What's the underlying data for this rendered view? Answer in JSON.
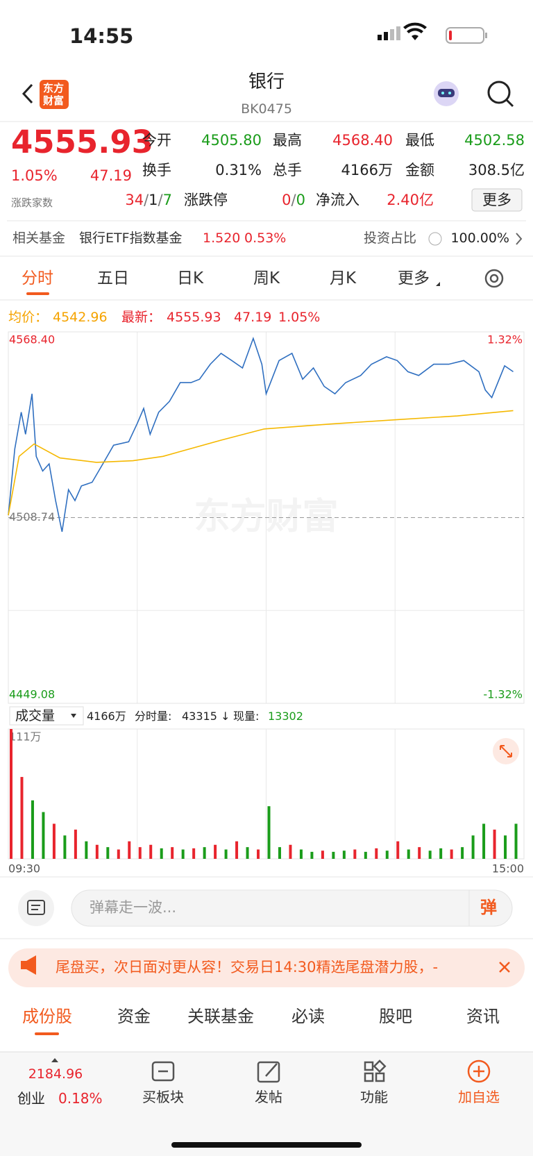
{
  "status_bar": {
    "time": "14:55"
  },
  "header": {
    "logo_top": "东方",
    "logo_bottom": "财富",
    "title": "银行",
    "code": "BK0475"
  },
  "quote": {
    "price": "4555.93",
    "change_pct": "1.05%",
    "change": "47.19",
    "open_label": "今开",
    "open": "4505.80",
    "high_label": "最高",
    "high": "4568.40",
    "low_label": "最低",
    "low": "4502.58",
    "turnover_label": "换手",
    "turnover": "0.31%",
    "volume_label": "总手",
    "volume": "4166万",
    "amount_label": "金额",
    "amount": "308.5亿",
    "breadth_label": "涨跌家数",
    "breadth_up": "34",
    "breadth_flat": "1",
    "breadth_down": "7",
    "sep": "/",
    "limit_label": "涨跌停",
    "limit_up": "0",
    "limit_down": "0",
    "inflow_label": "净流入",
    "inflow": "2.40亿",
    "more": "更多"
  },
  "fund": {
    "label": "相关基金",
    "name": "银行ETF指数基金",
    "price": "1.520",
    "change": "0.53%",
    "weight_label": "投资占比",
    "weight": "100.00%"
  },
  "tabs": [
    "分时",
    "五日",
    "日K",
    "周K",
    "月K",
    "更多"
  ],
  "chart_info": {
    "avg_label": "均价：",
    "avg": "4542.96",
    "last_label": "最新：",
    "last": "4555.93",
    "change": "47.19",
    "change_pct": "1.05%"
  },
  "chart_data": [
    {
      "type": "line",
      "watermark": "东方财富",
      "xlim": [
        0,
        240
      ],
      "ylim": [
        4449.08,
        4568.4
      ],
      "yticks": [
        {
          "value": 4568.4,
          "label": "4568.40"
        },
        {
          "value": 4508.74,
          "label": "4508.74"
        },
        {
          "value": 4449.08,
          "label": "4449.08"
        }
      ],
      "y2lim": [
        -1.32,
        1.32
      ],
      "y2ticks": [
        {
          "value": 1.32,
          "label": "1.32%"
        },
        {
          "value": -1.32,
          "label": "-1.32%"
        }
      ],
      "series": [
        {
          "color": "#2f6fc0",
          "x": [
            0,
            3,
            6,
            8,
            11,
            13,
            16,
            19,
            22,
            25,
            28,
            31,
            34,
            39,
            44,
            49,
            56,
            60,
            63,
            66,
            70,
            75,
            80,
            85,
            89,
            94,
            99,
            104,
            109,
            114,
            118,
            120,
            126,
            132,
            137,
            142,
            147,
            152,
            157,
            164,
            169,
            176,
            181,
            186,
            191,
            198,
            205,
            212,
            219,
            222,
            225,
            231,
            235
          ],
          "values": [
            4509.5,
            4530.8,
            4542.6,
            4535.5,
            4548.5,
            4528.4,
            4523.7,
            4526.0,
            4514.2,
            4504.2,
            4517.7,
            4514.2,
            4518.9,
            4520.1,
            4526.0,
            4532.0,
            4533.1,
            4539.0,
            4543.8,
            4535.5,
            4542.6,
            4546.1,
            4552.1,
            4552.1,
            4553.2,
            4558.0,
            4561.5,
            4559.2,
            4556.8,
            4566.3,
            4558.0,
            4548.5,
            4559.2,
            4561.5,
            4553.2,
            4556.8,
            4550.9,
            4548.5,
            4552.1,
            4554.4,
            4558.0,
            4560.4,
            4559.2,
            4555.6,
            4554.4,
            4558.0,
            4558.0,
            4559.2,
            4555.6,
            4549.7,
            4547.3,
            4557.5,
            4555.6
          ]
        },
        {
          "color": "#f5b800",
          "x": [
            0,
            5,
            12,
            24,
            41,
            58,
            72,
            99,
            119,
            150,
            181,
            209,
            235
          ],
          "values": [
            4509.5,
            4528.4,
            4532.4,
            4527.9,
            4526.5,
            4527.0,
            4528.4,
            4533.6,
            4537.2,
            4538.8,
            4540.2,
            4541.4,
            4543.1
          ]
        }
      ]
    },
    {
      "type": "bar",
      "selector": "成交量",
      "total": "4166万",
      "tick_label": "分时量:",
      "tick_volume": "43315",
      "arrow": "↓",
      "current_label": "现量:",
      "current_volume": "13302",
      "xlim": [
        0,
        240
      ],
      "ylim": [
        0,
        111
      ],
      "yticks": [
        {
          "value": 111,
          "label": "111万"
        }
      ],
      "xticks": [
        {
          "value": 0,
          "label": "09:30"
        },
        {
          "value": 240,
          "label": "15:00"
        }
      ],
      "x": [
        0,
        5,
        10,
        15,
        20,
        25,
        30,
        35,
        40,
        45,
        50,
        55,
        60,
        65,
        70,
        75,
        80,
        85,
        90,
        95,
        100,
        105,
        110,
        115,
        120,
        125,
        130,
        135,
        140,
        145,
        150,
        155,
        160,
        165,
        170,
        175,
        180,
        185,
        190,
        195,
        200,
        205,
        210,
        215,
        220,
        225,
        230,
        235
      ],
      "values": [
        111,
        70,
        50,
        40,
        30,
        20,
        25,
        15,
        12,
        10,
        8,
        15,
        10,
        12,
        9,
        10,
        8,
        9,
        10,
        12,
        8,
        15,
        10,
        8,
        45,
        10,
        12,
        8,
        6,
        7,
        6,
        7,
        8,
        6,
        9,
        7,
        15,
        8,
        10,
        7,
        9,
        8,
        10,
        20,
        30,
        25,
        20,
        30
      ],
      "colors": [
        "#e8242d",
        "#e8242d",
        "#1a9c1a",
        "#1a9c1a",
        "#e8242d",
        "#1a9c1a",
        "#e8242d",
        "#1a9c1a",
        "#e8242d",
        "#1a9c1a",
        "#e8242d",
        "#e8242d",
        "#e8242d",
        "#e8242d",
        "#1a9c1a",
        "#e8242d",
        "#1a9c1a",
        "#e8242d",
        "#1a9c1a",
        "#e8242d",
        "#1a9c1a",
        "#e8242d",
        "#1a9c1a",
        "#e8242d",
        "#1a9c1a",
        "#1a9c1a",
        "#e8242d",
        "#1a9c1a",
        "#1a9c1a",
        "#e8242d",
        "#1a9c1a",
        "#1a9c1a",
        "#e8242d",
        "#1a9c1a",
        "#e8242d",
        "#1a9c1a",
        "#e8242d",
        "#1a9c1a",
        "#e8242d",
        "#1a9c1a",
        "#1a9c1a",
        "#e8242d",
        "#1a9c1a",
        "#1a9c1a",
        "#1a9c1a",
        "#e8242d",
        "#1a9c1a",
        "#1a9c1a"
      ]
    }
  ],
  "comment": {
    "placeholder": "弹幕走一波...",
    "button": "弹"
  },
  "banner": {
    "text": "尾盘买，次日面对更从容！交易日14:30精选尾盘潜力股，-"
  },
  "sections": [
    "成份股",
    "资金",
    "关联基金",
    "必读",
    "股吧",
    "资讯"
  ],
  "bottom": {
    "index_value": "2184.96",
    "index_name": "创业",
    "index_change": "0.18%",
    "nav": [
      "买板块",
      "发帖",
      "功能",
      "加自选"
    ]
  }
}
